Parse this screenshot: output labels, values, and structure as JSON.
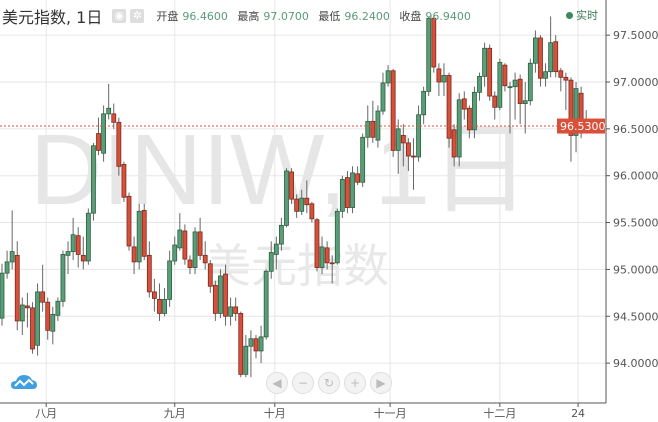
{
  "header": {
    "title": "美元指数, 1日",
    "icons": [
      "eye-icon",
      "gear-icon"
    ],
    "open_label": "开盘",
    "open": "96.4600",
    "high_label": "最高",
    "high": "97.0700",
    "low_label": "最低",
    "low": "96.2400",
    "close_label": "收盘",
    "close": "96.9400",
    "live_label": "实时"
  },
  "watermark": {
    "symbol": "DINIW, 1日",
    "name": "美元指数"
  },
  "nav_buttons": [
    "scroll-left",
    "zoom-out",
    "reset",
    "zoom-in",
    "scroll-right"
  ],
  "colors": {
    "up": "#5a9e78",
    "down": "#d9503a",
    "last_price": "#d9503a",
    "live": "#3a8a5a"
  },
  "chart_data": {
    "type": "candlestick",
    "ylim": [
      93.7,
      97.8
    ],
    "y_ticks": [
      "94.0000",
      "94.5000",
      "95.0000",
      "95.5000",
      "96.0000",
      "96.5000",
      "97.0000",
      "97.5000"
    ],
    "x_labels": [
      {
        "label": "八月",
        "index": 8.7
      },
      {
        "label": "九月",
        "index": 34
      },
      {
        "label": "十月",
        "index": 53.7
      },
      {
        "label": "十一月",
        "index": 76.4
      },
      {
        "label": "十二月",
        "index": 98
      },
      {
        "label": "24",
        "index": 113.4
      }
    ],
    "last_price": "96.5300",
    "grid": true,
    "ohlc": [
      [
        94.48,
        95.06,
        94.4,
        94.96
      ],
      [
        94.96,
        95.2,
        94.9,
        95.08
      ],
      [
        95.08,
        95.63,
        95.0,
        95.19
      ],
      [
        95.15,
        95.3,
        94.35,
        94.45
      ],
      [
        94.45,
        94.7,
        94.3,
        94.62
      ],
      [
        94.61,
        94.75,
        94.38,
        94.59
      ],
      [
        94.59,
        94.65,
        94.1,
        94.15
      ],
      [
        94.19,
        94.85,
        94.08,
        94.76
      ],
      [
        94.76,
        95.05,
        94.55,
        94.65
      ],
      [
        94.65,
        94.7,
        94.25,
        94.35
      ],
      [
        94.34,
        94.6,
        94.2,
        94.52
      ],
      [
        94.51,
        94.7,
        94.45,
        94.66
      ],
      [
        94.66,
        95.2,
        94.6,
        95.16
      ],
      [
        95.15,
        95.3,
        94.95,
        95.19
      ],
      [
        95.19,
        95.55,
        95.1,
        95.37
      ],
      [
        95.36,
        95.45,
        95.02,
        95.16
      ],
      [
        95.15,
        95.35,
        95.0,
        95.09
      ],
      [
        95.09,
        95.65,
        95.05,
        95.6
      ],
      [
        95.6,
        96.35,
        95.52,
        96.32
      ],
      [
        96.45,
        96.62,
        96.22,
        96.27
      ],
      [
        96.24,
        96.75,
        96.15,
        96.66
      ],
      [
        96.66,
        96.98,
        96.6,
        96.72
      ],
      [
        96.66,
        96.77,
        96.5,
        96.57
      ],
      [
        96.57,
        96.62,
        96.0,
        96.1
      ],
      [
        96.12,
        96.15,
        95.72,
        95.77
      ],
      [
        95.78,
        95.82,
        95.2,
        95.25
      ],
      [
        95.24,
        95.35,
        94.95,
        95.08
      ],
      [
        95.08,
        95.7,
        95.0,
        95.62
      ],
      [
        95.63,
        95.7,
        95.1,
        95.14
      ],
      [
        95.15,
        95.3,
        94.7,
        94.76
      ],
      [
        94.76,
        94.9,
        94.55,
        94.69
      ],
      [
        94.68,
        94.85,
        94.45,
        94.53
      ],
      [
        94.53,
        94.8,
        94.5,
        94.68
      ],
      [
        94.68,
        95.2,
        94.6,
        95.09
      ],
      [
        95.09,
        95.35,
        95.05,
        95.26
      ],
      [
        95.23,
        95.6,
        95.2,
        95.42
      ],
      [
        95.41,
        95.48,
        95.05,
        95.11
      ],
      [
        95.1,
        95.15,
        94.95,
        95.02
      ],
      [
        95.02,
        95.45,
        94.95,
        95.4
      ],
      [
        95.4,
        95.55,
        95.1,
        95.15
      ],
      [
        95.15,
        95.3,
        95.0,
        95.07
      ],
      [
        95.06,
        95.1,
        94.75,
        94.82
      ],
      [
        94.83,
        94.88,
        94.45,
        94.53
      ],
      [
        94.53,
        95.0,
        94.48,
        94.93
      ],
      [
        94.95,
        95.05,
        94.4,
        94.5
      ],
      [
        94.5,
        94.7,
        94.4,
        94.6
      ],
      [
        94.6,
        94.7,
        94.45,
        94.53
      ],
      [
        94.53,
        94.55,
        93.85,
        93.88
      ],
      [
        93.88,
        94.3,
        93.85,
        94.18
      ],
      [
        94.18,
        94.35,
        93.85,
        94.26
      ],
      [
        94.26,
        94.3,
        94.05,
        94.13
      ],
      [
        94.13,
        94.4,
        94.0,
        94.28
      ],
      [
        94.28,
        95.0,
        94.25,
        94.98
      ],
      [
        94.98,
        95.3,
        94.9,
        95.18
      ],
      [
        95.16,
        95.35,
        95.0,
        95.27
      ],
      [
        95.27,
        95.55,
        95.2,
        95.47
      ],
      [
        95.47,
        96.08,
        95.45,
        96.05
      ],
      [
        96.04,
        96.08,
        95.7,
        95.75
      ],
      [
        95.75,
        95.8,
        95.55,
        95.62
      ],
      [
        95.62,
        95.85,
        95.58,
        95.76
      ],
      [
        95.76,
        95.95,
        95.6,
        95.69
      ],
      [
        95.7,
        95.72,
        95.5,
        95.54
      ],
      [
        95.53,
        95.55,
        94.98,
        95.02
      ],
      [
        95.02,
        95.35,
        94.95,
        95.24
      ],
      [
        95.23,
        95.3,
        95.0,
        95.07
      ],
      [
        95.07,
        95.15,
        94.85,
        95.06
      ],
      [
        95.07,
        95.65,
        95.05,
        95.62
      ],
      [
        95.62,
        96.0,
        95.55,
        95.96
      ],
      [
        95.98,
        96.05,
        95.6,
        95.66
      ],
      [
        95.66,
        96.1,
        95.6,
        96.03
      ],
      [
        96.02,
        96.1,
        95.9,
        95.93
      ],
      [
        95.93,
        96.45,
        95.88,
        96.41
      ],
      [
        96.41,
        96.75,
        96.3,
        96.58
      ],
      [
        96.58,
        96.8,
        96.35,
        96.41
      ],
      [
        96.38,
        96.75,
        96.3,
        96.69
      ],
      [
        96.69,
        97.1,
        96.65,
        96.99
      ],
      [
        96.99,
        97.18,
        96.95,
        97.12
      ],
      [
        97.12,
        97.14,
        96.2,
        96.27
      ],
      [
        96.27,
        96.6,
        96.02,
        96.5
      ],
      [
        96.43,
        96.55,
        96.1,
        96.35
      ],
      [
        96.35,
        96.4,
        96.05,
        96.21
      ],
      [
        96.21,
        96.4,
        95.85,
        96.2
      ],
      [
        96.2,
        96.75,
        96.15,
        96.65
      ],
      [
        96.65,
        96.95,
        96.55,
        96.9
      ],
      [
        96.9,
        97.7,
        96.85,
        97.68
      ],
      [
        97.68,
        97.7,
        97.1,
        97.16
      ],
      [
        97.14,
        97.2,
        96.85,
        97.0
      ],
      [
        97.0,
        97.2,
        96.85,
        97.07
      ],
      [
        97.07,
        97.1,
        96.3,
        96.4
      ],
      [
        96.49,
        96.55,
        96.1,
        96.2
      ],
      [
        96.2,
        96.88,
        96.1,
        96.81
      ],
      [
        96.82,
        96.9,
        96.6,
        96.71
      ],
      [
        96.72,
        96.75,
        96.4,
        96.49
      ],
      [
        96.49,
        96.95,
        96.4,
        96.89
      ],
      [
        96.89,
        97.1,
        96.8,
        97.06
      ],
      [
        97.06,
        97.42,
        96.95,
        97.36
      ],
      [
        97.36,
        97.4,
        96.8,
        96.85
      ],
      [
        96.85,
        96.9,
        96.6,
        96.73
      ],
      [
        96.73,
        97.25,
        96.7,
        97.21
      ],
      [
        97.18,
        97.2,
        96.9,
        96.96
      ],
      [
        96.95,
        97.0,
        96.45,
        96.95
      ],
      [
        96.95,
        97.1,
        96.6,
        97.02
      ],
      [
        97.03,
        97.08,
        96.55,
        96.77
      ],
      [
        96.77,
        97.0,
        96.45,
        96.8
      ],
      [
        96.8,
        97.25,
        96.75,
        97.2
      ],
      [
        97.2,
        97.55,
        97.1,
        97.47
      ],
      [
        97.47,
        97.5,
        96.95,
        97.04
      ],
      [
        97.04,
        97.2,
        96.95,
        97.11
      ],
      [
        97.11,
        97.7,
        97.05,
        97.42
      ],
      [
        97.43,
        97.5,
        97.05,
        97.11
      ],
      [
        97.12,
        97.15,
        96.9,
        97.05
      ],
      [
        97.05,
        97.1,
        96.7,
        97.02
      ],
      [
        97.02,
        97.05,
        96.15,
        96.43
      ],
      [
        96.43,
        97.0,
        96.25,
        96.93
      ],
      [
        96.88,
        96.95,
        96.4,
        96.59
      ],
      [
        96.59,
        96.7,
        96.48,
        96.53
      ]
    ]
  }
}
